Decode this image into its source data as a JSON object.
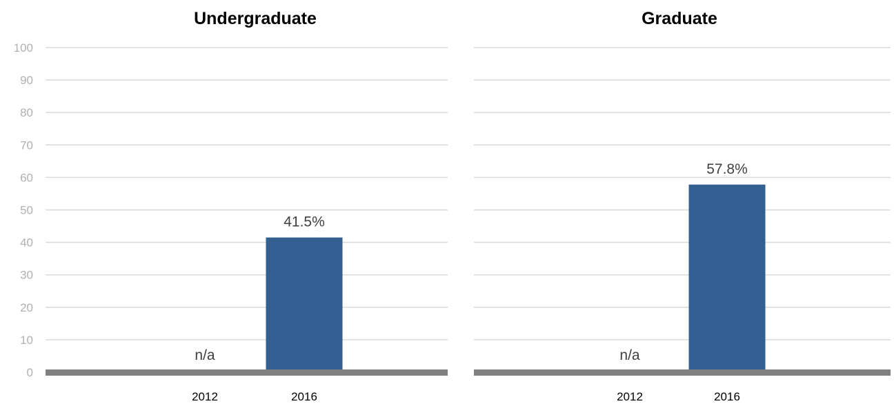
{
  "chart_data": [
    {
      "type": "bar",
      "title": "Undergraduate",
      "categories": [
        "2012",
        "2016"
      ],
      "values": [
        null,
        41.5
      ],
      "data_labels": [
        "n/a",
        "41.5%"
      ],
      "ylim": [
        0,
        100
      ],
      "yticks": [
        "0",
        "10",
        "20",
        "30",
        "40",
        "50",
        "60",
        "70",
        "80",
        "90",
        "100"
      ],
      "grid": true,
      "colors": {
        "bar": "#345f93",
        "axis": "#808080",
        "grid": "#d9d9d9"
      }
    },
    {
      "type": "bar",
      "title": "Graduate",
      "categories": [
        "2012",
        "2016"
      ],
      "values": [
        null,
        57.8
      ],
      "data_labels": [
        "n/a",
        "57.8%"
      ],
      "ylim": [
        0,
        100
      ],
      "grid": true,
      "colors": {
        "bar": "#345f93",
        "axis": "#808080",
        "grid": "#d9d9d9"
      }
    }
  ]
}
